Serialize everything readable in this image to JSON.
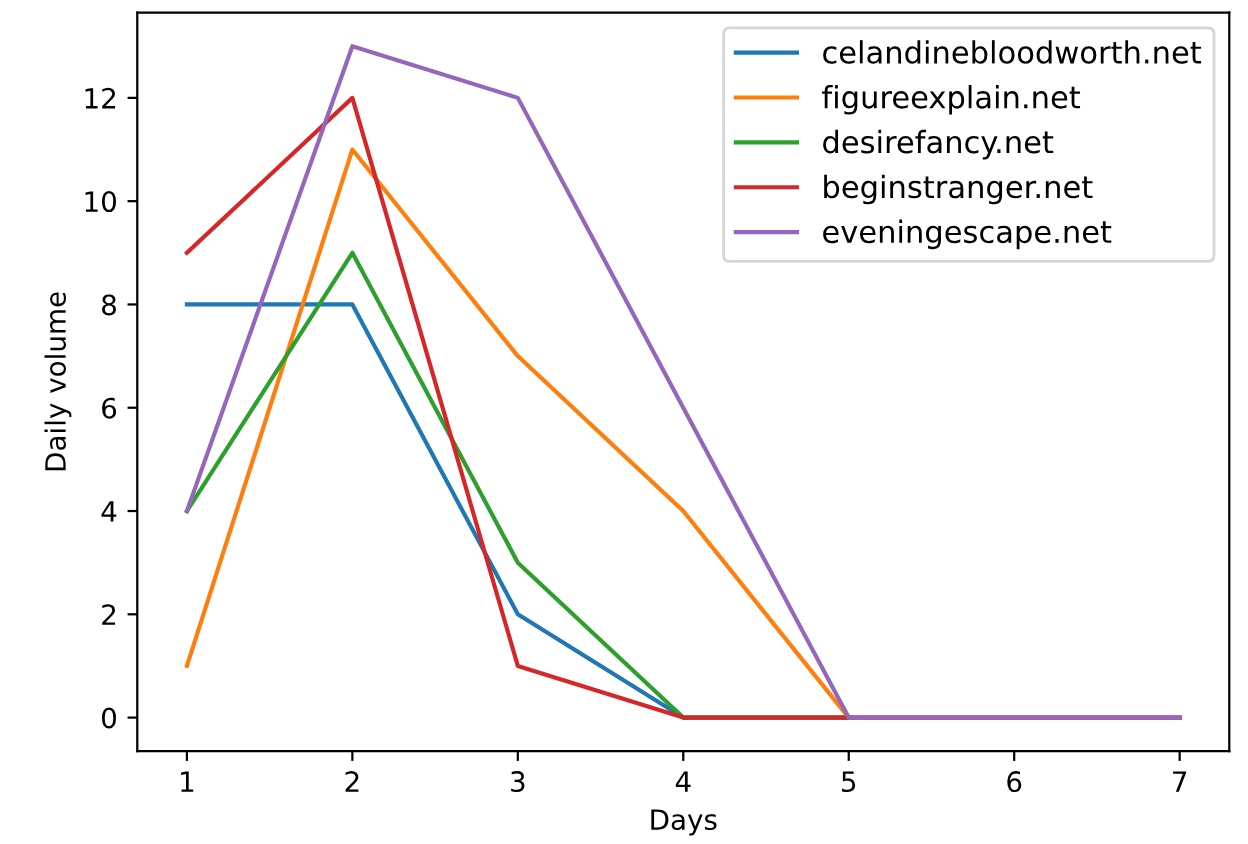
{
  "chart_data": {
    "type": "line",
    "xlabel": "Days",
    "ylabel": "Daily volume",
    "x": [
      1,
      2,
      3,
      4,
      5,
      6,
      7
    ],
    "series": [
      {
        "name": "celandinebloodworth.net",
        "color": "#1f77b4",
        "values": [
          8,
          8,
          2,
          0,
          0,
          null,
          null
        ]
      },
      {
        "name": "figureexplain.net",
        "color": "#ff7f0e",
        "values": [
          1,
          11,
          7,
          4,
          0,
          0,
          0
        ]
      },
      {
        "name": "desirefancy.net",
        "color": "#2ca02c",
        "values": [
          4,
          9,
          3,
          0,
          0,
          null,
          null
        ]
      },
      {
        "name": "beginstranger.net",
        "color": "#d62728",
        "values": [
          9,
          12,
          1,
          0,
          0,
          0,
          0
        ]
      },
      {
        "name": "eveningescape.net",
        "color": "#9467bd",
        "values": [
          4,
          13,
          12,
          6,
          0,
          0,
          0
        ]
      }
    ],
    "xlim": [
      0.7,
      7.3
    ],
    "ylim": [
      -0.65,
      13.65
    ],
    "xticks": [
      1,
      2,
      3,
      4,
      5,
      6,
      7
    ],
    "yticks": [
      0,
      2,
      4,
      6,
      8,
      10,
      12
    ],
    "grid": false,
    "legend": "top right",
    "marker": "none",
    "line_style": "solid"
  }
}
